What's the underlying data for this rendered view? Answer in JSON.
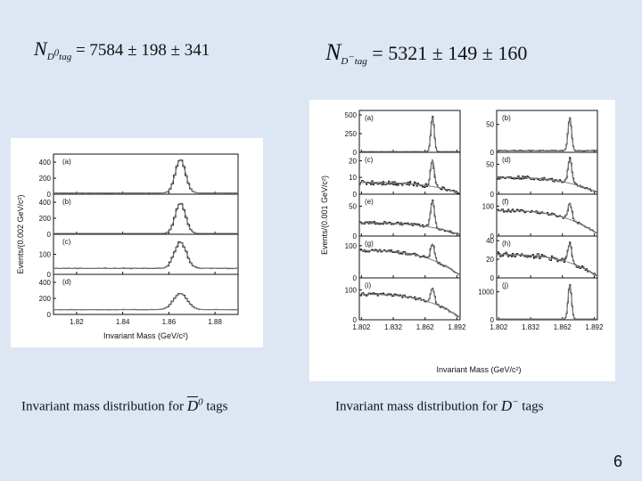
{
  "formulas": {
    "d0": {
      "symbol": "N",
      "subscript": "D",
      "subscript2": "tag",
      "superscript": "0",
      "rhs": "= 7584 ± 198 ± 341"
    },
    "dminus": {
      "symbol": "N",
      "subscript": "D",
      "subscript2": "tag",
      "superscript": "−",
      "rhs": "= 5321 ± 149 ± 160"
    }
  },
  "captions": {
    "d0": {
      "prefix": "Invariant mass distribution for",
      "symbol": "D",
      "superscript": "0",
      "suffix": "tags"
    },
    "dminus": {
      "prefix": "Invariant mass distribution for",
      "symbol": "D",
      "superscript": "−",
      "suffix": "tags"
    }
  },
  "slide_number": "6",
  "colors": {
    "background": "#dde6f3",
    "panel": "#ffffff",
    "ink": "#111111",
    "fit_curve": "#777777"
  },
  "chart_data": [
    {
      "type": "line",
      "xlabel": "Invariant Mass (GeV/c²)",
      "ylabel": "Events/(0.002 GeV/c²)",
      "x_ticks": [
        "1.82",
        "1.84",
        "1.86",
        "1.88"
      ],
      "xlim": [
        1.81,
        1.89
      ],
      "peak": 1.865,
      "subplots": [
        {
          "label": "(a)",
          "ylim": [
            0,
            500
          ],
          "y_ticks": [
            "400",
            "200",
            "0"
          ],
          "peak_height": 420,
          "background": 15,
          "width": 0.0022
        },
        {
          "label": "(b)",
          "ylim": [
            0,
            500
          ],
          "y_ticks": [
            "400",
            "200",
            "0"
          ],
          "peak_height": 380,
          "background": 10,
          "width": 0.0022
        },
        {
          "label": "(c)",
          "ylim": [
            0,
            200
          ],
          "y_ticks": [
            "100",
            "0"
          ],
          "peak_height": 130,
          "background": 30,
          "width": 0.0026
        },
        {
          "label": "(d)",
          "ylim": [
            0,
            500
          ],
          "y_ticks": [
            "400",
            "200",
            "0"
          ],
          "peak_height": 200,
          "background": 60,
          "width": 0.003
        }
      ]
    },
    {
      "type": "line",
      "xlabel": "Invariant Mass (GeV/c²)",
      "ylabel": "Events/(0.001 GeV/c²)",
      "x_ticks": [
        "1.802",
        "1.832",
        "1.862",
        "1.892"
      ],
      "xlim": [
        1.8,
        1.895
      ],
      "peak": 1.869,
      "subplots": [
        {
          "label": "(a)",
          "ylim": [
            0,
            560
          ],
          "y_ticks": [
            "500",
            "250",
            "0"
          ],
          "peak_height": 470,
          "background": 8,
          "width": 0.0016,
          "falloff": false
        },
        {
          "label": "(b)",
          "ylim": [
            0,
            75
          ],
          "y_ticks": [
            "50",
            "0"
          ],
          "peak_height": 60,
          "background": 3,
          "width": 0.0016,
          "falloff": false
        },
        {
          "label": "(c)",
          "ylim": [
            0,
            25
          ],
          "y_ticks": [
            "20",
            "10",
            "0"
          ],
          "peak_height": 16,
          "background": 7,
          "width": 0.0018,
          "falloff": true
        },
        {
          "label": "(d)",
          "ylim": [
            0,
            70
          ],
          "y_ticks": [
            "50",
            "0"
          ],
          "peak_height": 40,
          "background": 28,
          "width": 0.0018,
          "falloff": true
        },
        {
          "label": "(e)",
          "ylim": [
            0,
            70
          ],
          "y_ticks": [
            "50",
            "0"
          ],
          "peak_height": 45,
          "background": 22,
          "width": 0.0018,
          "falloff": true
        },
        {
          "label": "(f)",
          "ylim": [
            0,
            140
          ],
          "y_ticks": [
            "100",
            "0"
          ],
          "peak_height": 55,
          "background": 85,
          "width": 0.0018,
          "falloff": true
        },
        {
          "label": "(g)",
          "ylim": [
            0,
            130
          ],
          "y_ticks": [
            "100",
            "0"
          ],
          "peak_height": 50,
          "background": 85,
          "width": 0.0018,
          "falloff": true
        },
        {
          "label": "(h)",
          "ylim": [
            0,
            45
          ],
          "y_ticks": [
            "40",
            "20",
            "0"
          ],
          "peak_height": 20,
          "background": 25,
          "width": 0.0018,
          "falloff": true
        },
        {
          "label": "(i)",
          "ylim": [
            0,
            140
          ],
          "y_ticks": [
            "100",
            "0"
          ],
          "peak_height": 50,
          "background": 85,
          "width": 0.0018,
          "falloff": true
        },
        {
          "label": "(j)",
          "ylim": [
            0,
            1500
          ],
          "y_ticks": [
            "1000",
            "0"
          ],
          "peak_height": 1250,
          "background": 25,
          "width": 0.0016,
          "falloff": false
        }
      ]
    }
  ]
}
